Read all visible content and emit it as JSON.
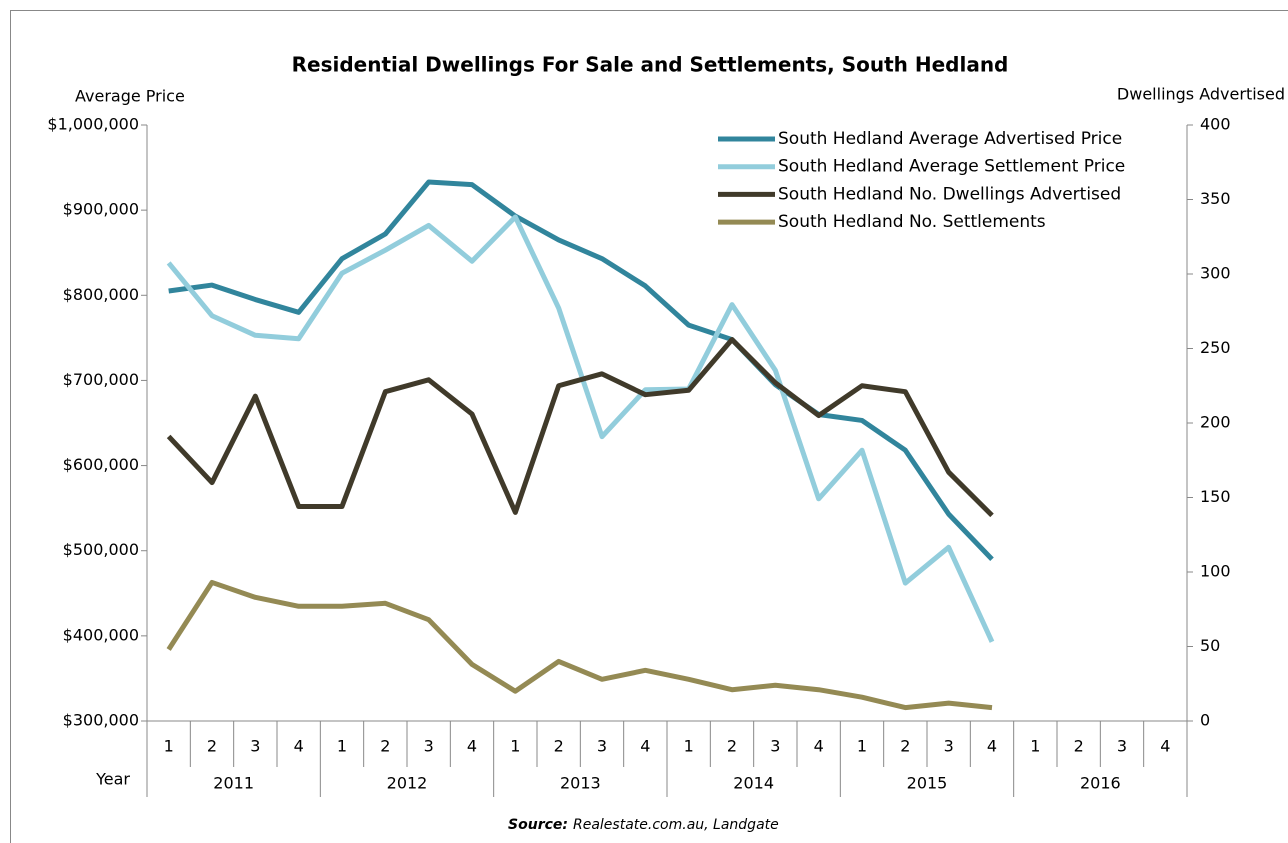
{
  "chart_data": {
    "type": "line",
    "title": "Residential Dwellings For Sale and Settlements, South Hedland",
    "y_label": "Average Price",
    "y2_label": "Dwellings Advertised",
    "x_label": "Year",
    "source_label": "Source:",
    "source": "Realestate.com.au, Landgate",
    "categories": [
      "1",
      "2",
      "3",
      "4",
      "1",
      "2",
      "3",
      "4",
      "1",
      "2",
      "3",
      "4",
      "1",
      "2",
      "3",
      "4",
      "1",
      "2",
      "3",
      "4",
      "1",
      "2",
      "3",
      "4"
    ],
    "years": [
      "2011",
      "2012",
      "2013",
      "2014",
      "2015",
      "2016"
    ],
    "ylim": [
      300000,
      1000000
    ],
    "yticks": [
      {
        "value": 300000,
        "label": "$300,000"
      },
      {
        "value": 400000,
        "label": "$400,000"
      },
      {
        "value": 500000,
        "label": "$500,000"
      },
      {
        "value": 600000,
        "label": "$600,000"
      },
      {
        "value": 700000,
        "label": "$700,000"
      },
      {
        "value": 800000,
        "label": "$800,000"
      },
      {
        "value": 900000,
        "label": "$900,000"
      },
      {
        "value": 1000000,
        "label": "$1,000,000"
      }
    ],
    "y2lim": [
      0,
      400
    ],
    "y2ticks": [
      0,
      50,
      100,
      150,
      200,
      250,
      300,
      350,
      400
    ],
    "legend": "top-right",
    "series": [
      {
        "name": "South Hedland Average Advertised Price",
        "color": "#31859c",
        "values": [
          805000,
          812000,
          795000,
          780000,
          843000,
          872000,
          933000,
          930000,
          893000,
          865000,
          843000,
          811000,
          765000,
          748000,
          695000,
          660000,
          653000,
          618000,
          543000,
          490000,
          null,
          null,
          null,
          null
        ]
      },
      {
        "name": "South Hedland Average Settlement Price",
        "color": "#92cddc",
        "values": [
          838000,
          776000,
          753000,
          749000,
          826000,
          853000,
          882000,
          840000,
          892000,
          785000,
          634000,
          689000,
          690000,
          789000,
          712000,
          561000,
          618000,
          462000,
          504000,
          393000,
          null,
          null,
          null,
          null
        ]
      },
      {
        "name": "South Hedland No. Dwellings Advertised",
        "color": "#403a2a",
        "axis": "y2",
        "values": [
          191,
          160,
          218,
          144,
          144,
          221,
          229,
          206,
          140,
          225,
          233,
          219,
          222,
          256,
          227,
          205,
          225,
          221,
          167,
          138,
          null,
          null,
          null,
          null
        ]
      },
      {
        "name": "South Hedland No. Settlements",
        "color": "#948a54",
        "axis": "y2",
        "values": [
          48,
          93,
          83,
          77,
          77,
          79,
          68,
          38,
          20,
          40,
          28,
          34,
          28,
          21,
          24,
          21,
          16,
          9,
          12,
          9,
          null,
          null,
          null,
          null
        ]
      }
    ]
  }
}
